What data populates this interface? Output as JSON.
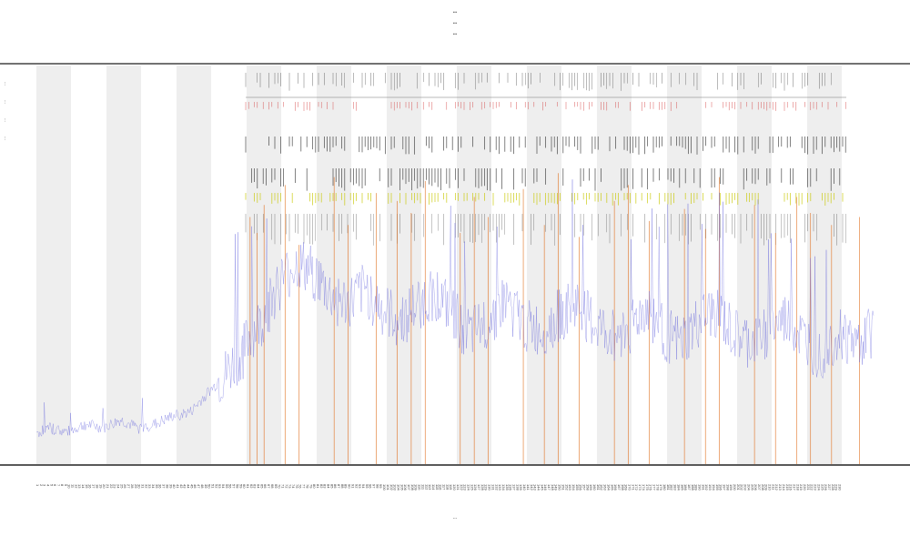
{
  "header": {
    "title": "...",
    "subtitle_1": "...",
    "subtitle_2": "..."
  },
  "legend": {
    "items": [
      {
        "label": "...",
        "color": "#222222"
      },
      {
        "label": "...",
        "color": "#b8a000"
      },
      {
        "label": "...",
        "color": "#e07020"
      },
      {
        "label": "...",
        "color": "#222222"
      }
    ]
  },
  "colors": {
    "background_band": "#eeeeee",
    "trace": "#5050d8",
    "orange_bars": "#e07020",
    "yellow_marks": "#c8c800",
    "red_marks": "#d03030",
    "event_marks": "#222222",
    "axis": "#222222"
  },
  "chart_data": {
    "type": "line",
    "title": "...",
    "xlabel": "...",
    "ylabel": "",
    "x_range": [
      1,
      240
    ],
    "ylim": [
      0,
      100
    ],
    "grid": false,
    "legend_position": "left",
    "alternating_bands": true,
    "trace": {
      "name": "",
      "x": [
        1,
        5,
        10,
        15,
        20,
        25,
        30,
        35,
        40,
        45,
        50,
        55,
        60,
        62,
        65,
        70,
        75,
        80,
        85,
        90,
        95,
        100,
        105,
        110,
        115,
        120,
        125,
        130,
        135,
        140,
        145,
        150,
        155,
        160,
        165,
        170,
        175,
        180,
        185,
        190,
        195,
        200,
        205,
        210,
        215,
        220,
        225,
        230,
        235,
        240
      ],
      "values": [
        8,
        9,
        8,
        10,
        9,
        11,
        9,
        10,
        12,
        13,
        18,
        22,
        28,
        32,
        35,
        45,
        50,
        48,
        42,
        40,
        44,
        38,
        36,
        40,
        43,
        37,
        32,
        36,
        41,
        35,
        33,
        37,
        40,
        35,
        32,
        34,
        39,
        33,
        30,
        35,
        38,
        32,
        30,
        34,
        36,
        31,
        28,
        33,
        30,
        34
      ]
    },
    "orange_bars": {
      "name": "",
      "x": [
        62,
        64,
        66,
        72,
        76,
        86,
        90,
        98,
        104,
        108,
        112,
        122,
        126,
        130,
        140,
        146,
        150,
        156,
        166,
        170,
        176,
        186,
        192,
        196,
        206,
        212,
        218,
        222,
        228,
        236
      ],
      "values": [
        62,
        58,
        65,
        70,
        55,
        72,
        60,
        68,
        66,
        63,
        71,
        58,
        67,
        62,
        69,
        60,
        73,
        57,
        66,
        70,
        61,
        64,
        59,
        72,
        65,
        58,
        67,
        63,
        60,
        62
      ]
    }
  }
}
